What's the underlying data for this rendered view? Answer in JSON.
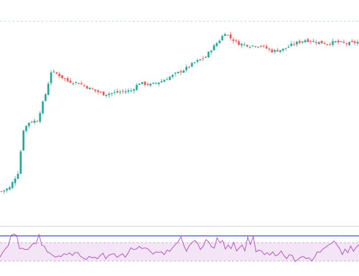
{
  "colors": {
    "background": "#ffffff",
    "candle_up": "#26a69a",
    "candle_down": "#ef5350",
    "wick": "#555555",
    "price_reference_line": "#b2dfdb",
    "rsi_line": "#ab47bc",
    "rsi_band_fill": "#f3e5f5",
    "rsi_band_border": "#ce93d8",
    "rsi_upper_line": "#3f51b5",
    "pane_divider": "#d0d0d0"
  },
  "chart_data": [
    {
      "type": "candlestick",
      "title": "",
      "xlabel": "",
      "ylabel": "",
      "axis_labels_visible": false,
      "grid": false,
      "reference_line": {
        "style": "dashed",
        "value": 106
      },
      "ylim": [
        0,
        110
      ],
      "candle_count": 130,
      "close_path": [
        [
          0,
          15
        ],
        [
          3,
          17
        ],
        [
          6,
          25
        ],
        [
          8,
          48
        ],
        [
          10,
          52
        ],
        [
          13,
          53
        ],
        [
          16,
          67
        ],
        [
          18,
          79
        ],
        [
          20,
          78
        ],
        [
          24,
          74
        ],
        [
          28,
          73
        ],
        [
          32,
          70
        ],
        [
          37,
          67
        ],
        [
          42,
          68
        ],
        [
          47,
          69
        ],
        [
          50,
          73
        ],
        [
          54,
          72
        ],
        [
          58,
          74
        ],
        [
          62,
          77
        ],
        [
          66,
          80
        ],
        [
          70,
          84
        ],
        [
          74,
          87
        ],
        [
          76,
          91
        ],
        [
          79,
          96
        ],
        [
          81,
          100
        ],
        [
          83,
          97
        ],
        [
          86,
          94
        ],
        [
          90,
          93
        ],
        [
          94,
          93
        ],
        [
          98,
          90
        ],
        [
          102,
          91
        ],
        [
          106,
          94
        ],
        [
          110,
          96
        ],
        [
          114,
          95
        ],
        [
          118,
          94
        ],
        [
          121,
          95
        ],
        [
          125,
          94
        ],
        [
          130,
          95
        ]
      ]
    },
    {
      "type": "line",
      "title": "",
      "xlabel": "",
      "ylabel": "",
      "axis_labels_visible": false,
      "grid": false,
      "ylim": [
        0,
        100
      ],
      "band": [
        30,
        70
      ],
      "upper_line": 85,
      "values": [
        38,
        49,
        57,
        64,
        86,
        89,
        86,
        57,
        58,
        55,
        55,
        62,
        69,
        68,
        88,
        65,
        62,
        50,
        47,
        42,
        38,
        41,
        40,
        46,
        44,
        48,
        42,
        49,
        48,
        40,
        36,
        33,
        40,
        37,
        38,
        35,
        42,
        47,
        35,
        42,
        45,
        46,
        38,
        42,
        46,
        38,
        47,
        59,
        55,
        56,
        62,
        57,
        59,
        57,
        51,
        45,
        50,
        49,
        50,
        44,
        54,
        51,
        59,
        66,
        72,
        83,
        65,
        51,
        64,
        70,
        75,
        69,
        55,
        62,
        77,
        72,
        61,
        58,
        81,
        70,
        75,
        56,
        65,
        57,
        71,
        52,
        59,
        65,
        52,
        82,
        66,
        84,
        50,
        54,
        52,
        44,
        48,
        43,
        50,
        41,
        44,
        52,
        42,
        35,
        44,
        42,
        29,
        33,
        38,
        40,
        35,
        37,
        30,
        38,
        50,
        49,
        56,
        60,
        65,
        68,
        74,
        66,
        58,
        44,
        56,
        48,
        63,
        51,
        60,
        66
      ]
    }
  ]
}
